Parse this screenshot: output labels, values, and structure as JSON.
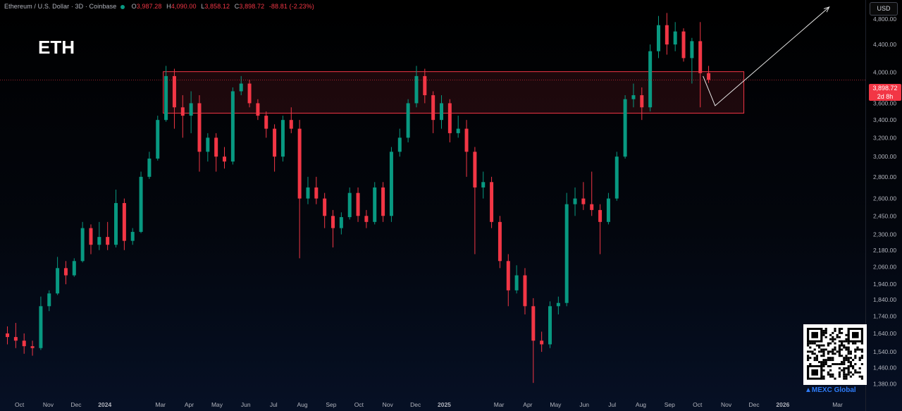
{
  "header": {
    "symbol_text": "Ethereum / U.S. Dollar · 3D · Coinbase",
    "open_label": "O",
    "open_value": "3,987.28",
    "high_label": "H",
    "high_value": "4,090.00",
    "low_label": "L",
    "low_value": "3,858.12",
    "close_label": "C",
    "close_value": "3,898.72",
    "change_value": "-88.81 (-2.23%)"
  },
  "asset_label": "ETH",
  "currency_button": "USD",
  "last_price": {
    "value": "3,898.72",
    "countdown": "2d 8h"
  },
  "brand": "MEXC Global",
  "colors": {
    "up": "#089981",
    "down": "#f23645",
    "zone": "#f23645",
    "arrow": "#e6e6e6"
  },
  "chart_data": {
    "type": "candlestick",
    "y_scale": "log",
    "ylim": [
      1330,
      5000
    ],
    "y_ticks": [
      4800,
      4400,
      4000,
      3600,
      3400,
      3200,
      3000,
      2800,
      2600,
      2450,
      2300,
      2180,
      2060,
      1940,
      1840,
      1740,
      1640,
      1540,
      1460,
      1380
    ],
    "x_ticks": [
      {
        "label": "Oct",
        "date": "2023-10-01"
      },
      {
        "label": "Nov",
        "date": "2023-11-01"
      },
      {
        "label": "Dec",
        "date": "2023-12-01"
      },
      {
        "label": "2024",
        "date": "2024-01-01"
      },
      {
        "label": "Mar",
        "date": "2024-03-01"
      },
      {
        "label": "Apr",
        "date": "2024-04-01"
      },
      {
        "label": "May",
        "date": "2024-05-01"
      },
      {
        "label": "Jun",
        "date": "2024-06-01"
      },
      {
        "label": "Jul",
        "date": "2024-07-01"
      },
      {
        "label": "Aug",
        "date": "2024-08-01"
      },
      {
        "label": "Sep",
        "date": "2024-09-01"
      },
      {
        "label": "Oct",
        "date": "2024-10-01"
      },
      {
        "label": "Nov",
        "date": "2024-11-01"
      },
      {
        "label": "Dec",
        "date": "2024-12-01"
      },
      {
        "label": "2025",
        "date": "2025-01-01"
      },
      {
        "label": "Mar",
        "date": "2025-03-01"
      },
      {
        "label": "Apr",
        "date": "2025-04-01"
      },
      {
        "label": "May",
        "date": "2025-05-01"
      },
      {
        "label": "Jun",
        "date": "2025-06-01"
      },
      {
        "label": "Jul",
        "date": "2025-07-01"
      },
      {
        "label": "Aug",
        "date": "2025-08-01"
      },
      {
        "label": "Sep",
        "date": "2025-09-01"
      },
      {
        "label": "Oct",
        "date": "2025-10-01"
      },
      {
        "label": "Nov",
        "date": "2025-11-01"
      },
      {
        "label": "Dec",
        "date": "2025-12-01"
      },
      {
        "label": "2026",
        "date": "2026-01-01"
      },
      {
        "label": "Mar",
        "date": "2026-03-01"
      }
    ],
    "series": [
      {
        "values": [
          {
            "d": "2023-09-18",
            "o": 1640,
            "h": 1680,
            "l": 1580,
            "c": 1620
          },
          {
            "d": "2023-09-27",
            "o": 1620,
            "h": 1700,
            "l": 1560,
            "c": 1600
          },
          {
            "d": "2023-10-06",
            "o": 1600,
            "h": 1640,
            "l": 1530,
            "c": 1570
          },
          {
            "d": "2023-10-15",
            "o": 1570,
            "h": 1600,
            "l": 1520,
            "c": 1560
          },
          {
            "d": "2023-10-24",
            "o": 1560,
            "h": 1860,
            "l": 1550,
            "c": 1800
          },
          {
            "d": "2023-11-02",
            "o": 1800,
            "h": 1900,
            "l": 1770,
            "c": 1880
          },
          {
            "d": "2023-11-11",
            "o": 1880,
            "h": 2130,
            "l": 1870,
            "c": 2050
          },
          {
            "d": "2023-11-20",
            "o": 2050,
            "h": 2100,
            "l": 1940,
            "c": 2000
          },
          {
            "d": "2023-11-29",
            "o": 2000,
            "h": 2120,
            "l": 1990,
            "c": 2100
          },
          {
            "d": "2023-12-08",
            "o": 2100,
            "h": 2400,
            "l": 2090,
            "c": 2350
          },
          {
            "d": "2023-12-17",
            "o": 2350,
            "h": 2380,
            "l": 2150,
            "c": 2220
          },
          {
            "d": "2023-12-26",
            "o": 2220,
            "h": 2400,
            "l": 2180,
            "c": 2280
          },
          {
            "d": "2024-01-04",
            "o": 2280,
            "h": 2400,
            "l": 2180,
            "c": 2220
          },
          {
            "d": "2024-01-13",
            "o": 2220,
            "h": 2680,
            "l": 2200,
            "c": 2560
          },
          {
            "d": "2024-01-22",
            "o": 2560,
            "h": 2600,
            "l": 2180,
            "c": 2250
          },
          {
            "d": "2024-01-31",
            "o": 2250,
            "h": 2350,
            "l": 2220,
            "c": 2320
          },
          {
            "d": "2024-02-09",
            "o": 2320,
            "h": 2850,
            "l": 2310,
            "c": 2800
          },
          {
            "d": "2024-02-18",
            "o": 2800,
            "h": 3050,
            "l": 2780,
            "c": 2980
          },
          {
            "d": "2024-02-27",
            "o": 2980,
            "h": 3450,
            "l": 2960,
            "c": 3400
          },
          {
            "d": "2024-03-07",
            "o": 3400,
            "h": 4090,
            "l": 3380,
            "c": 3950
          },
          {
            "d": "2024-03-16",
            "o": 3950,
            "h": 4050,
            "l": 3300,
            "c": 3550
          },
          {
            "d": "2024-03-25",
            "o": 3550,
            "h": 3700,
            "l": 3200,
            "c": 3450
          },
          {
            "d": "2024-04-03",
            "o": 3450,
            "h": 3750,
            "l": 3250,
            "c": 3600
          },
          {
            "d": "2024-04-12",
            "o": 3600,
            "h": 3700,
            "l": 2850,
            "c": 3050
          },
          {
            "d": "2024-04-21",
            "o": 3050,
            "h": 3250,
            "l": 2950,
            "c": 3200
          },
          {
            "d": "2024-04-30",
            "o": 3200,
            "h": 3250,
            "l": 2850,
            "c": 3000
          },
          {
            "d": "2024-05-09",
            "o": 3000,
            "h": 3100,
            "l": 2880,
            "c": 2950
          },
          {
            "d": "2024-05-18",
            "o": 2950,
            "h": 3800,
            "l": 2920,
            "c": 3750
          },
          {
            "d": "2024-05-27",
            "o": 3750,
            "h": 3950,
            "l": 3700,
            "c": 3850
          },
          {
            "d": "2024-06-05",
            "o": 3850,
            "h": 3900,
            "l": 3550,
            "c": 3600
          },
          {
            "d": "2024-06-14",
            "o": 3600,
            "h": 3650,
            "l": 3400,
            "c": 3450
          },
          {
            "d": "2024-06-23",
            "o": 3450,
            "h": 3500,
            "l": 3200,
            "c": 3300
          },
          {
            "d": "2024-07-02",
            "o": 3300,
            "h": 3350,
            "l": 2850,
            "c": 3000
          },
          {
            "d": "2024-07-11",
            "o": 3000,
            "h": 3450,
            "l": 2950,
            "c": 3400
          },
          {
            "d": "2024-07-20",
            "o": 3400,
            "h": 3550,
            "l": 3250,
            "c": 3300
          },
          {
            "d": "2024-07-29",
            "o": 3300,
            "h": 3400,
            "l": 2120,
            "c": 2600
          },
          {
            "d": "2024-08-07",
            "o": 2600,
            "h": 2800,
            "l": 2550,
            "c": 2700
          },
          {
            "d": "2024-08-16",
            "o": 2700,
            "h": 2800,
            "l": 2550,
            "c": 2600
          },
          {
            "d": "2024-08-25",
            "o": 2600,
            "h": 2650,
            "l": 2350,
            "c": 2450
          },
          {
            "d": "2024-09-03",
            "o": 2450,
            "h": 2500,
            "l": 2200,
            "c": 2350
          },
          {
            "d": "2024-09-12",
            "o": 2350,
            "h": 2480,
            "l": 2300,
            "c": 2440
          },
          {
            "d": "2024-09-21",
            "o": 2440,
            "h": 2700,
            "l": 2420,
            "c": 2650
          },
          {
            "d": "2024-09-30",
            "o": 2650,
            "h": 2700,
            "l": 2400,
            "c": 2450
          },
          {
            "d": "2024-10-09",
            "o": 2450,
            "h": 2500,
            "l": 2350,
            "c": 2400
          },
          {
            "d": "2024-10-18",
            "o": 2400,
            "h": 2750,
            "l": 2380,
            "c": 2700
          },
          {
            "d": "2024-10-27",
            "o": 2700,
            "h": 2750,
            "l": 2400,
            "c": 2450
          },
          {
            "d": "2024-11-05",
            "o": 2450,
            "h": 3100,
            "l": 2400,
            "c": 3050
          },
          {
            "d": "2024-11-14",
            "o": 3050,
            "h": 3300,
            "l": 3000,
            "c": 3200
          },
          {
            "d": "2024-11-23",
            "o": 3200,
            "h": 3650,
            "l": 3150,
            "c": 3600
          },
          {
            "d": "2024-12-02",
            "o": 3600,
            "h": 4090,
            "l": 3550,
            "c": 3950
          },
          {
            "d": "2024-12-11",
            "o": 3950,
            "h": 4050,
            "l": 3600,
            "c": 3700
          },
          {
            "d": "2024-12-20",
            "o": 3700,
            "h": 3750,
            "l": 3250,
            "c": 3400
          },
          {
            "d": "2024-12-29",
            "o": 3400,
            "h": 3700,
            "l": 3300,
            "c": 3600
          },
          {
            "d": "2025-01-07",
            "o": 3600,
            "h": 3650,
            "l": 3150,
            "c": 3250
          },
          {
            "d": "2025-01-16",
            "o": 3250,
            "h": 3450,
            "l": 3200,
            "c": 3300
          },
          {
            "d": "2025-01-25",
            "o": 3300,
            "h": 3400,
            "l": 2800,
            "c": 3050
          },
          {
            "d": "2025-02-03",
            "o": 3050,
            "h": 3100,
            "l": 2150,
            "c": 2700
          },
          {
            "d": "2025-02-12",
            "o": 2700,
            "h": 2850,
            "l": 2600,
            "c": 2750
          },
          {
            "d": "2025-02-21",
            "o": 2750,
            "h": 2800,
            "l": 2350,
            "c": 2400
          },
          {
            "d": "2025-03-02",
            "o": 2400,
            "h": 2450,
            "l": 2050,
            "c": 2100
          },
          {
            "d": "2025-03-11",
            "o": 2100,
            "h": 2150,
            "l": 1800,
            "c": 1900
          },
          {
            "d": "2025-03-20",
            "o": 1900,
            "h": 2070,
            "l": 1880,
            "c": 2000
          },
          {
            "d": "2025-03-29",
            "o": 2000,
            "h": 2050,
            "l": 1750,
            "c": 1800
          },
          {
            "d": "2025-04-07",
            "o": 1800,
            "h": 1850,
            "l": 1385,
            "c": 1600
          },
          {
            "d": "2025-04-16",
            "o": 1600,
            "h": 1650,
            "l": 1540,
            "c": 1580
          },
          {
            "d": "2025-04-25",
            "o": 1580,
            "h": 1830,
            "l": 1560,
            "c": 1800
          },
          {
            "d": "2025-05-04",
            "o": 1800,
            "h": 1860,
            "l": 1750,
            "c": 1820
          },
          {
            "d": "2025-05-13",
            "o": 1820,
            "h": 2650,
            "l": 1800,
            "c": 2550
          },
          {
            "d": "2025-05-22",
            "o": 2550,
            "h": 2700,
            "l": 2450,
            "c": 2600
          },
          {
            "d": "2025-05-31",
            "o": 2600,
            "h": 2750,
            "l": 2500,
            "c": 2550
          },
          {
            "d": "2025-06-09",
            "o": 2550,
            "h": 2850,
            "l": 2450,
            "c": 2500
          },
          {
            "d": "2025-06-18",
            "o": 2500,
            "h": 2550,
            "l": 2150,
            "c": 2400
          },
          {
            "d": "2025-06-27",
            "o": 2400,
            "h": 2650,
            "l": 2380,
            "c": 2600
          },
          {
            "d": "2025-07-06",
            "o": 2600,
            "h": 3050,
            "l": 2580,
            "c": 3000
          },
          {
            "d": "2025-07-15",
            "o": 3000,
            "h": 3700,
            "l": 2980,
            "c": 3650
          },
          {
            "d": "2025-07-24",
            "o": 3650,
            "h": 3850,
            "l": 3550,
            "c": 3700
          },
          {
            "d": "2025-08-02",
            "o": 3700,
            "h": 3800,
            "l": 3400,
            "c": 3550
          },
          {
            "d": "2025-08-11",
            "o": 3550,
            "h": 4400,
            "l": 3500,
            "c": 4300
          },
          {
            "d": "2025-08-20",
            "o": 4300,
            "h": 4850,
            "l": 4200,
            "c": 4700
          },
          {
            "d": "2025-08-29",
            "o": 4700,
            "h": 4900,
            "l": 4250,
            "c": 4400
          },
          {
            "d": "2025-09-07",
            "o": 4400,
            "h": 4750,
            "l": 4300,
            "c": 4600
          },
          {
            "d": "2025-09-16",
            "o": 4600,
            "h": 4650,
            "l": 4150,
            "c": 4200
          },
          {
            "d": "2025-09-25",
            "o": 4200,
            "h": 4500,
            "l": 3850,
            "c": 4450
          },
          {
            "d": "2025-10-04",
            "o": 4450,
            "h": 4750,
            "l": 3550,
            "c": 3990
          },
          {
            "d": "2025-10-13",
            "o": 3990,
            "h": 4090,
            "l": 3858,
            "c": 3899
          }
        ]
      }
    ],
    "zone": {
      "from_date": "2024-03-04",
      "to_date": "2025-11-20",
      "low": 3480,
      "high": 4010
    },
    "projection": [
      {
        "d": "2025-10-07",
        "v": 3950
      },
      {
        "d": "2025-10-20",
        "v": 3570
      },
      {
        "d": "2026-02-20",
        "v": 5000
      }
    ]
  }
}
